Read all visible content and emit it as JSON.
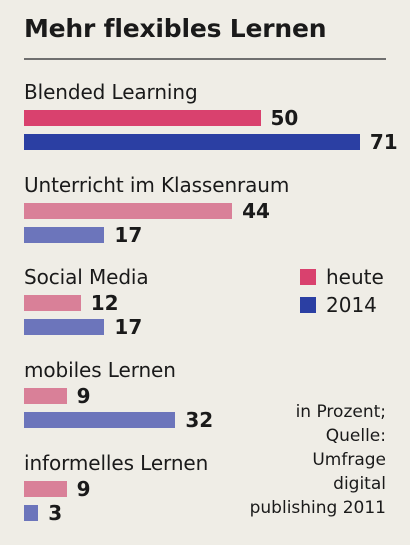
{
  "chart_data": {
    "type": "bar",
    "orientation": "horizontal",
    "title": "Mehr flexibles Lernen",
    "categories": [
      "Blended Learning",
      "Unterricht im Klassenraum",
      "Social Media",
      "mobiles Lernen",
      "informelles Lernen"
    ],
    "series": [
      {
        "name": "heute",
        "values": [
          50,
          44,
          12,
          9,
          9
        ]
      },
      {
        "name": "2014",
        "values": [
          71,
          17,
          17,
          32,
          3
        ]
      }
    ],
    "ylim": [
      0,
      71
    ],
    "grid": false,
    "legend_position": "right"
  },
  "colors": {
    "heute_emphasis": "#d9416e",
    "heute": "#d98098",
    "2014_emphasis": "#2b3fa3",
    "2014": "#6c75bb",
    "background": "#efede6",
    "rule": "#6f6f6f"
  },
  "note": {
    "lines": [
      "in Prozent;",
      "Quelle:",
      "Umfrage",
      "digital",
      "publishing 2011"
    ]
  }
}
